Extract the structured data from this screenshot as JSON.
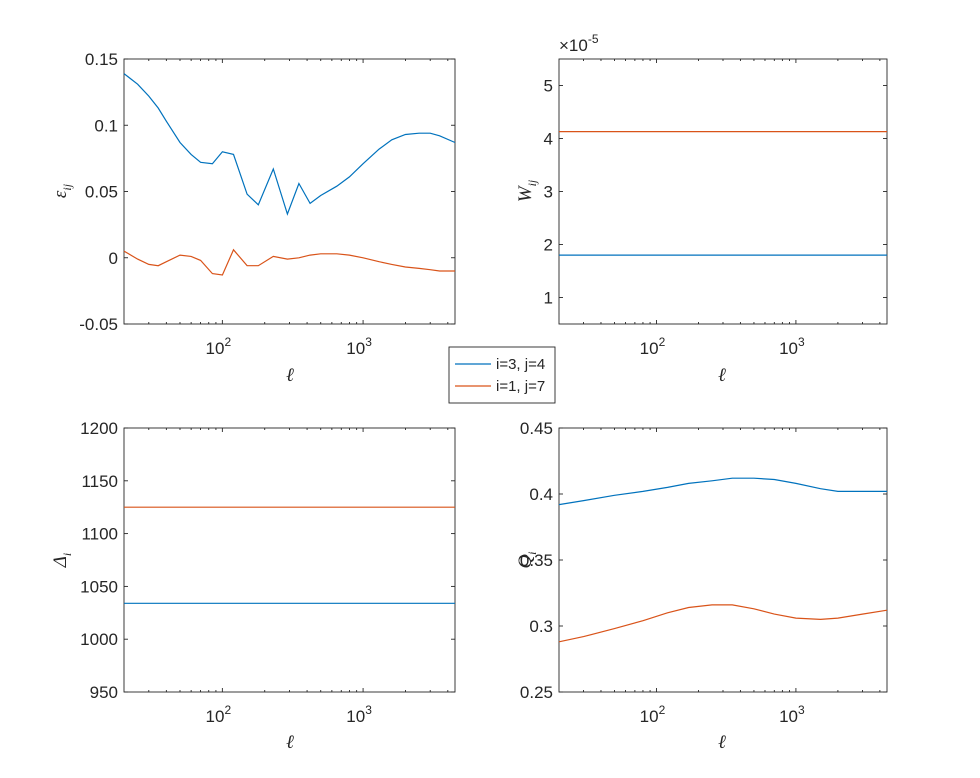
{
  "colors": {
    "series1": "#0072BD",
    "series2": "#D95319",
    "axis": "#262626"
  },
  "legend": {
    "entries": [
      "i=3, j=4",
      "i=1, j=7"
    ],
    "placement": "center"
  },
  "chart_data": [
    {
      "type": "line",
      "id": "eps",
      "ylabel": {
        "main": "ε",
        "sub": "ij"
      },
      "xlabel": "ℓ",
      "xscale": "log",
      "xlim": [
        20,
        4500
      ],
      "ylim": [
        -0.05,
        0.15
      ],
      "yticks": [
        "-0.05",
        "0",
        "0.05",
        "0.1",
        "0.15"
      ],
      "ytick_values": [
        -0.05,
        0,
        0.05,
        0.1,
        0.15
      ],
      "xticks": [
        {
          "base": "10",
          "exp": "2",
          "value": 100
        },
        {
          "base": "10",
          "exp": "3",
          "value": 1000
        }
      ],
      "series": [
        {
          "name": "i=3, j=4",
          "x": [
            20,
            25,
            30,
            35,
            40,
            50,
            60,
            70,
            85,
            100,
            120,
            150,
            180,
            230,
            290,
            350,
            420,
            500,
            650,
            800,
            1000,
            1300,
            1600,
            2000,
            2500,
            3000,
            3500,
            4500
          ],
          "y": [
            0.139,
            0.131,
            0.122,
            0.113,
            0.103,
            0.087,
            0.078,
            0.072,
            0.071,
            0.08,
            0.078,
            0.048,
            0.04,
            0.067,
            0.033,
            0.056,
            0.041,
            0.047,
            0.054,
            0.061,
            0.071,
            0.082,
            0.089,
            0.093,
            0.094,
            0.094,
            0.092,
            0.087
          ]
        },
        {
          "name": "i=1, j=7",
          "x": [
            20,
            25,
            30,
            35,
            40,
            50,
            60,
            70,
            85,
            100,
            120,
            150,
            180,
            230,
            290,
            350,
            420,
            500,
            650,
            800,
            1000,
            1300,
            1600,
            2000,
            2500,
            3000,
            3500,
            4500
          ],
          "y": [
            0.005,
            -0.001,
            -0.005,
            -0.006,
            -0.003,
            0.002,
            0.001,
            -0.002,
            -0.012,
            -0.013,
            0.006,
            -0.006,
            -0.006,
            0.001,
            -0.001,
            0.0,
            0.002,
            0.003,
            0.003,
            0.002,
            0.0,
            -0.003,
            -0.005,
            -0.007,
            -0.008,
            -0.009,
            -0.01,
            -0.01
          ]
        }
      ]
    },
    {
      "type": "line",
      "id": "W",
      "ylabel": {
        "main": "W",
        "sub": "ij"
      },
      "xlabel": "ℓ",
      "xscale": "log",
      "xlim": [
        20,
        4500
      ],
      "ylim": [
        0.5,
        5.5
      ],
      "yticks": [
        "1",
        "2",
        "3",
        "4",
        "5"
      ],
      "ytick_values": [
        1,
        2,
        3,
        4,
        5
      ],
      "multiplier": {
        "base": "×10",
        "exp": "-5"
      },
      "xticks": [
        {
          "base": "10",
          "exp": "2",
          "value": 100
        },
        {
          "base": "10",
          "exp": "3",
          "value": 1000
        }
      ],
      "series": [
        {
          "name": "i=3, j=4",
          "x": [
            20,
            4500
          ],
          "y": [
            1.8,
            1.8
          ]
        },
        {
          "name": "i=1, j=7",
          "x": [
            20,
            4500
          ],
          "y": [
            4.13,
            4.13
          ]
        }
      ]
    },
    {
      "type": "line",
      "id": "Delta",
      "ylabel": {
        "main": "Δ",
        "sub": "i"
      },
      "xlabel": "ℓ",
      "xscale": "log",
      "xlim": [
        20,
        4500
      ],
      "ylim": [
        950,
        1200
      ],
      "yticks": [
        "950",
        "1000",
        "1050",
        "1100",
        "1150",
        "1200"
      ],
      "ytick_values": [
        950,
        1000,
        1050,
        1100,
        1150,
        1200
      ],
      "xticks": [
        {
          "base": "10",
          "exp": "2",
          "value": 100
        },
        {
          "base": "10",
          "exp": "3",
          "value": 1000
        }
      ],
      "series": [
        {
          "name": "i=3, j=4",
          "x": [
            20,
            4500
          ],
          "y": [
            1034,
            1034
          ]
        },
        {
          "name": "i=1, j=7",
          "x": [
            20,
            4500
          ],
          "y": [
            1125,
            1125
          ]
        }
      ]
    },
    {
      "type": "line",
      "id": "Q",
      "ylabel": {
        "main": "Q",
        "sub": "i"
      },
      "xlabel": "ℓ",
      "xscale": "log",
      "xlim": [
        20,
        4500
      ],
      "ylim": [
        0.25,
        0.45
      ],
      "yticks": [
        "0.25",
        "0.3",
        "0.35",
        "0.4",
        "0.45"
      ],
      "ytick_values": [
        0.25,
        0.3,
        0.35,
        0.4,
        0.45
      ],
      "xticks": [
        {
          "base": "10",
          "exp": "2",
          "value": 100
        },
        {
          "base": "10",
          "exp": "3",
          "value": 1000
        }
      ],
      "series": [
        {
          "name": "i=3, j=4",
          "x": [
            20,
            30,
            50,
            80,
            120,
            170,
            250,
            350,
            500,
            700,
            1000,
            1500,
            2000,
            3000,
            4500
          ],
          "y": [
            0.392,
            0.395,
            0.399,
            0.402,
            0.405,
            0.408,
            0.41,
            0.412,
            0.412,
            0.411,
            0.408,
            0.404,
            0.402,
            0.402,
            0.402
          ]
        },
        {
          "name": "i=1, j=7",
          "x": [
            20,
            30,
            50,
            80,
            120,
            170,
            250,
            350,
            500,
            700,
            1000,
            1500,
            2000,
            3000,
            4500
          ],
          "y": [
            0.288,
            0.292,
            0.298,
            0.304,
            0.31,
            0.314,
            0.316,
            0.316,
            0.313,
            0.309,
            0.306,
            0.305,
            0.306,
            0.309,
            0.312
          ]
        }
      ]
    }
  ]
}
